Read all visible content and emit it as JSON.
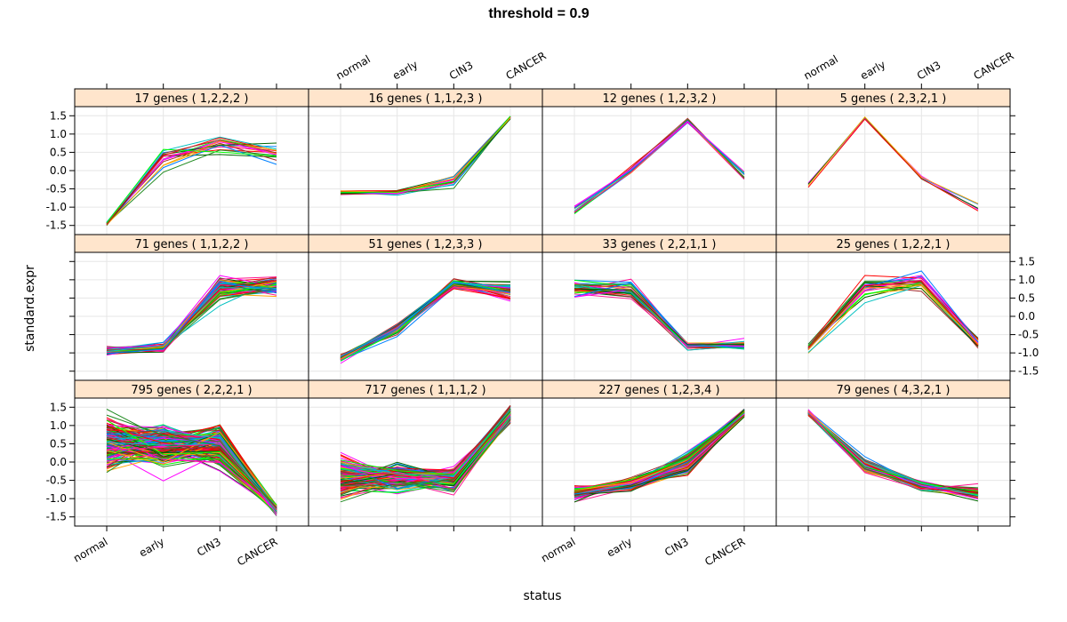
{
  "chart_data": {
    "type": "line",
    "title": "threshold = 0.9",
    "xlabel": "status",
    "ylabel": "standard.expr",
    "categories": [
      "normal",
      "early",
      "CIN3",
      "CANCER"
    ],
    "ylim": [
      -1.75,
      1.75
    ],
    "yticks": [
      -1.5,
      -1.0,
      -0.5,
      0.0,
      0.5,
      1.0,
      1.5
    ],
    "ytick_labels": [
      "-1.5",
      "-1.0",
      "-0.5",
      "0.0",
      "0.5",
      "1.0",
      "1.5"
    ],
    "grid": true,
    "strip_color": "#ffe5cc",
    "line_colors": [
      "#0080ff",
      "#ff00ff",
      "#006400",
      "#ff0000",
      "#ffa500",
      "#00ff00",
      "#a52a2a",
      "#00c0c0",
      "#ff1493",
      "#228b22"
    ],
    "layout": {
      "columns": 4,
      "rows": 3
    },
    "panels": [
      {
        "label": "17 genes ( 1,2,2,2 )",
        "n_genes": 17,
        "pattern": [
          1,
          2,
          2,
          2
        ],
        "centroid": [
          -1.45,
          0.35,
          0.75,
          0.45
        ],
        "spread": [
          0.05,
          0.25,
          0.25,
          0.25
        ]
      },
      {
        "label": "16 genes ( 1,1,2,3 )",
        "n_genes": 16,
        "pattern": [
          1,
          1,
          2,
          3
        ],
        "centroid": [
          -0.6,
          -0.6,
          -0.3,
          1.45
        ],
        "spread": [
          0.05,
          0.06,
          0.15,
          0.04
        ]
      },
      {
        "label": "12 genes ( 1,2,3,2 )",
        "n_genes": 12,
        "pattern": [
          1,
          2,
          3,
          2
        ],
        "centroid": [
          -1.1,
          0.0,
          1.35,
          -0.15
        ],
        "spread": [
          0.12,
          0.08,
          0.06,
          0.12
        ]
      },
      {
        "label": "5 genes ( 2,3,2,1 )",
        "n_genes": 5,
        "pattern": [
          2,
          3,
          2,
          1
        ],
        "centroid": [
          -0.3,
          1.4,
          -0.2,
          -1.0
        ],
        "spread": [
          0.15,
          0.05,
          0.08,
          0.15
        ]
      },
      {
        "label": "71 genes ( 1,1,2,2 )",
        "n_genes": 71,
        "pattern": [
          1,
          1,
          2,
          2
        ],
        "centroid": [
          -0.95,
          -0.85,
          0.75,
          0.85
        ],
        "spread": [
          0.08,
          0.1,
          0.22,
          0.22
        ]
      },
      {
        "label": "51 genes ( 1,2,3,3 )",
        "n_genes": 51,
        "pattern": [
          1,
          2,
          3,
          3
        ],
        "centroid": [
          -1.15,
          -0.35,
          0.9,
          0.7
        ],
        "spread": [
          0.08,
          0.1,
          0.12,
          0.18
        ]
      },
      {
        "label": "33 genes ( 2,2,1,1 )",
        "n_genes": 33,
        "pattern": [
          2,
          2,
          1,
          1
        ],
        "centroid": [
          0.75,
          0.7,
          -0.8,
          -0.8
        ],
        "spread": [
          0.25,
          0.25,
          0.1,
          0.1
        ]
      },
      {
        "label": "25 genes ( 1,2,2,1 )",
        "n_genes": 25,
        "pattern": [
          1,
          2,
          2,
          1
        ],
        "centroid": [
          -0.85,
          0.75,
          0.95,
          -0.75
        ],
        "spread": [
          0.1,
          0.25,
          0.2,
          0.12
        ]
      },
      {
        "label": "795 genes ( 2,2,2,1 )",
        "n_genes": 795,
        "pattern": [
          2,
          2,
          2,
          1
        ],
        "centroid": [
          0.5,
          0.45,
          0.45,
          -1.3
        ],
        "spread": [
          0.5,
          0.4,
          0.4,
          0.1
        ]
      },
      {
        "label": "717 genes ( 1,1,1,2 )",
        "n_genes": 717,
        "pattern": [
          1,
          1,
          1,
          2
        ],
        "centroid": [
          -0.45,
          -0.4,
          -0.45,
          1.3
        ],
        "spread": [
          0.4,
          0.25,
          0.2,
          0.15
        ]
      },
      {
        "label": "227 genes ( 1,2,3,4 )",
        "n_genes": 227,
        "pattern": [
          1,
          2,
          3,
          4
        ],
        "centroid": [
          -0.85,
          -0.6,
          -0.05,
          1.35
        ],
        "spread": [
          0.12,
          0.12,
          0.2,
          0.08
        ]
      },
      {
        "label": "79 genes ( 4,3,2,1 )",
        "n_genes": 79,
        "pattern": [
          4,
          3,
          2,
          1
        ],
        "centroid": [
          1.35,
          -0.1,
          -0.65,
          -0.85
        ],
        "spread": [
          0.06,
          0.15,
          0.08,
          0.12
        ]
      }
    ]
  }
}
